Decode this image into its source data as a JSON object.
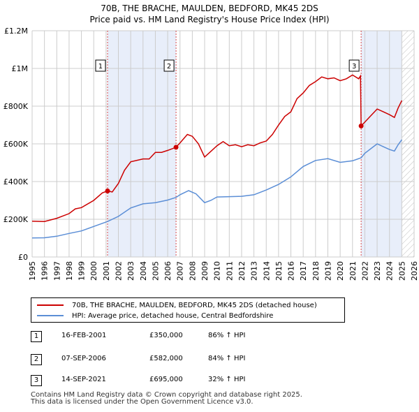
{
  "title_line1": "70B, THE BRACHE, MAULDEN, BEDFORD, MK45 2DS",
  "title_line2": "Price paid vs. HM Land Registry's House Price Index (HPI)",
  "colors": {
    "red": "#cc0000",
    "blue": "#5b8ed6",
    "shade": "#e8eefa",
    "grid": "#cccccc"
  },
  "legend": {
    "red_label": "70B, THE BRACHE, MAULDEN, BEDFORD, MK45 2DS (detached house)",
    "blue_label": "HPI: Average price, detached house, Central Bedfordshire"
  },
  "sales": [
    {
      "num": "1",
      "date": "16-FEB-2001",
      "price": "£350,000",
      "hpi": "86% ↑ HPI"
    },
    {
      "num": "2",
      "date": "07-SEP-2006",
      "price": "£582,000",
      "hpi": "84% ↑ HPI"
    },
    {
      "num": "3",
      "date": "14-SEP-2021",
      "price": "£695,000",
      "hpi": "32% ↑ HPI"
    }
  ],
  "footer": {
    "line1": "Contains HM Land Registry data © Crown copyright and database right 2025.",
    "line2": "This data is licensed under the Open Government Licence v3.0."
  },
  "chart_data": {
    "type": "line",
    "title": "Price paid vs. HM Land Registry's House Price Index (HPI)",
    "xlabel": "",
    "ylabel": "",
    "xlim": [
      1995,
      2026
    ],
    "ylim": [
      0,
      1200000
    ],
    "y_ticks": [
      0,
      200000,
      400000,
      600000,
      800000,
      1000000,
      1200000
    ],
    "y_tick_labels": [
      "£0",
      "£200K",
      "£400K",
      "£600K",
      "£800K",
      "£1M",
      "£1.2M"
    ],
    "x_ticks": [
      1995,
      1996,
      1997,
      1998,
      1999,
      2000,
      2001,
      2002,
      2003,
      2004,
      2005,
      2006,
      2007,
      2008,
      2009,
      2010,
      2011,
      2012,
      2013,
      2014,
      2015,
      2016,
      2017,
      2018,
      2019,
      2020,
      2021,
      2022,
      2023,
      2024,
      2025,
      2026
    ],
    "grid": true,
    "shaded_ranges": [
      [
        2001.12,
        2006.68
      ],
      [
        2021.7,
        2025.0
      ]
    ],
    "hatch_from": 2025.0,
    "markers": [
      {
        "label": "1",
        "x": 2001.12,
        "y": 350000
      },
      {
        "label": "2",
        "x": 2006.68,
        "y": 582000
      },
      {
        "label": "3",
        "x": 2021.7,
        "y": 695000
      }
    ],
    "series": [
      {
        "name": "70B, THE BRACHE, MAULDEN, BEDFORD, MK45 2DS (detached house)",
        "color": "#cc0000",
        "points": [
          [
            1995,
            190000
          ],
          [
            1996,
            188000
          ],
          [
            1997,
            205000
          ],
          [
            1998,
            230000
          ],
          [
            1998.5,
            255000
          ],
          [
            1999,
            262000
          ],
          [
            2000,
            300000
          ],
          [
            2000.7,
            340000
          ],
          [
            2001.12,
            350000
          ],
          [
            2001.5,
            345000
          ],
          [
            2002,
            390000
          ],
          [
            2002.5,
            460000
          ],
          [
            2003,
            505000
          ],
          [
            2004,
            520000
          ],
          [
            2004.5,
            520000
          ],
          [
            2005,
            555000
          ],
          [
            2005.5,
            555000
          ],
          [
            2006,
            565000
          ],
          [
            2006.68,
            582000
          ],
          [
            2007,
            605000
          ],
          [
            2007.6,
            650000
          ],
          [
            2008,
            640000
          ],
          [
            2008.5,
            600000
          ],
          [
            2009,
            530000
          ],
          [
            2009.5,
            560000
          ],
          [
            2010,
            590000
          ],
          [
            2010.5,
            612000
          ],
          [
            2011,
            590000
          ],
          [
            2011.5,
            595000
          ],
          [
            2012,
            585000
          ],
          [
            2012.5,
            595000
          ],
          [
            2013,
            590000
          ],
          [
            2013.5,
            605000
          ],
          [
            2014,
            615000
          ],
          [
            2014.5,
            650000
          ],
          [
            2015,
            700000
          ],
          [
            2015.5,
            745000
          ],
          [
            2016,
            770000
          ],
          [
            2016.5,
            840000
          ],
          [
            2017,
            870000
          ],
          [
            2017.5,
            910000
          ],
          [
            2018,
            930000
          ],
          [
            2018.5,
            955000
          ],
          [
            2019,
            945000
          ],
          [
            2019.5,
            950000
          ],
          [
            2020,
            935000
          ],
          [
            2020.5,
            945000
          ],
          [
            2021,
            965000
          ],
          [
            2021.5,
            945000
          ],
          [
            2021.65,
            960000
          ],
          [
            2021.7,
            695000
          ],
          [
            2022,
            715000
          ],
          [
            2022.5,
            750000
          ],
          [
            2023,
            785000
          ],
          [
            2023.5,
            770000
          ],
          [
            2024,
            755000
          ],
          [
            2024.4,
            740000
          ],
          [
            2024.7,
            790000
          ],
          [
            2025,
            830000
          ]
        ]
      },
      {
        "name": "HPI: Average price, detached house, Central Bedfordshire",
        "color": "#5b8ed6",
        "points": [
          [
            1995,
            101000
          ],
          [
            1996,
            102000
          ],
          [
            1997,
            110000
          ],
          [
            1998,
            125000
          ],
          [
            1999,
            138000
          ],
          [
            2000,
            162000
          ],
          [
            2001.12,
            188000
          ],
          [
            2002,
            215000
          ],
          [
            2003,
            260000
          ],
          [
            2004,
            282000
          ],
          [
            2005,
            288000
          ],
          [
            2006,
            302000
          ],
          [
            2006.68,
            316000
          ],
          [
            2007,
            330000
          ],
          [
            2007.7,
            352000
          ],
          [
            2008.3,
            335000
          ],
          [
            2009,
            288000
          ],
          [
            2009.5,
            300000
          ],
          [
            2010,
            318000
          ],
          [
            2011,
            320000
          ],
          [
            2012,
            322000
          ],
          [
            2013,
            330000
          ],
          [
            2014,
            355000
          ],
          [
            2015,
            385000
          ],
          [
            2016,
            425000
          ],
          [
            2017,
            480000
          ],
          [
            2018,
            512000
          ],
          [
            2019,
            522000
          ],
          [
            2020,
            502000
          ],
          [
            2021,
            510000
          ],
          [
            2021.7,
            526000
          ],
          [
            2022,
            550000
          ],
          [
            2022.6,
            580000
          ],
          [
            2023,
            600000
          ],
          [
            2023.5,
            585000
          ],
          [
            2024,
            570000
          ],
          [
            2024.4,
            562000
          ],
          [
            2024.7,
            595000
          ],
          [
            2025,
            622000
          ]
        ]
      }
    ]
  }
}
